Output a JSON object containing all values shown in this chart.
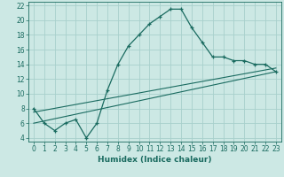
{
  "title": "",
  "xlabel": "Humidex (Indice chaleur)",
  "background_color": "#cce8e4",
  "grid_color": "#a8d0cc",
  "line_color": "#1a6b60",
  "xlim": [
    -0.5,
    23.5
  ],
  "ylim": [
    3.5,
    22.5
  ],
  "xticks": [
    0,
    1,
    2,
    3,
    4,
    5,
    6,
    7,
    8,
    9,
    10,
    11,
    12,
    13,
    14,
    15,
    16,
    17,
    18,
    19,
    20,
    21,
    22,
    23
  ],
  "yticks": [
    4,
    6,
    8,
    10,
    12,
    14,
    16,
    18,
    20,
    22
  ],
  "line1_x": [
    0,
    1,
    2,
    3,
    4,
    5,
    6,
    7,
    8,
    9,
    10,
    11,
    12,
    13,
    14,
    15,
    16,
    17,
    18,
    19,
    20,
    21,
    22,
    23
  ],
  "line1_y": [
    8,
    6,
    5,
    6,
    6.5,
    4,
    6,
    10.5,
    14,
    16.5,
    18,
    19.5,
    20.5,
    21.5,
    21.5,
    19,
    17,
    15,
    15,
    14.5,
    14.5,
    14,
    14,
    13
  ],
  "line2_x": [
    0,
    23
  ],
  "line2_y": [
    6,
    13
  ],
  "line3_x": [
    0,
    23
  ],
  "line3_y": [
    7.5,
    13.5
  ],
  "tick_fontsize": 5.5,
  "xlabel_fontsize": 6.5
}
